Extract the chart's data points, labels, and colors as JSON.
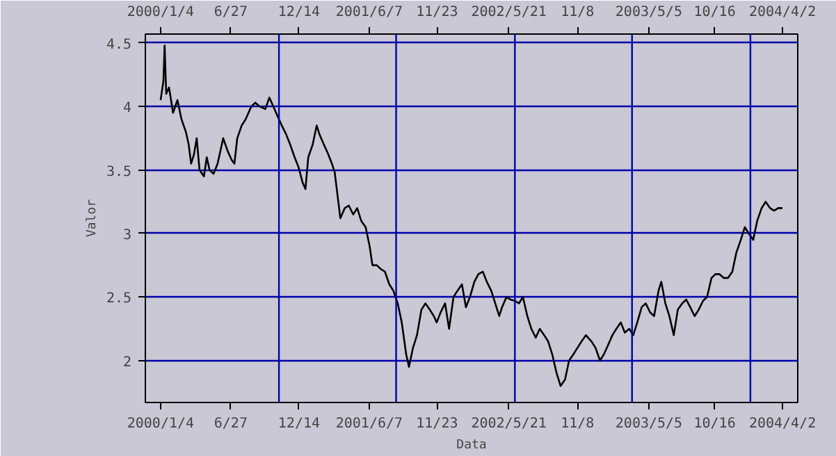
{
  "chart_data": {
    "type": "line",
    "xlabel": "Data",
    "ylabel": "Valor",
    "x": [
      "2000-01-04",
      "2000-01-11",
      "2000-01-14",
      "2000-01-18",
      "2000-01-25",
      "2000-02-04",
      "2000-02-15",
      "2000-02-25",
      "2000-03-07",
      "2000-03-14",
      "2000-03-20",
      "2000-03-27",
      "2000-04-03",
      "2000-04-10",
      "2000-04-21",
      "2000-04-28",
      "2000-05-05",
      "2000-05-15",
      "2000-05-25",
      "2000-06-08",
      "2000-06-19",
      "2000-06-29",
      "2000-07-06",
      "2000-07-13",
      "2000-07-24",
      "2000-08-03",
      "2000-08-17",
      "2000-08-27",
      "2000-09-07",
      "2000-09-21",
      "2000-10-01",
      "2000-10-11",
      "2000-10-22",
      "2000-11-01",
      "2000-11-12",
      "2000-11-22",
      "2000-12-03",
      "2000-12-13",
      "2000-12-23",
      "2000-12-30",
      "2001-01-06",
      "2001-01-17",
      "2001-01-27",
      "2001-02-03",
      "2001-02-14",
      "2001-02-24",
      "2001-03-06",
      "2001-03-13",
      "2001-03-20",
      "2001-03-27",
      "2001-04-07",
      "2001-04-17",
      "2001-04-28",
      "2001-05-08",
      "2001-05-18",
      "2001-05-29",
      "2001-06-08",
      "2001-06-15",
      "2001-06-26",
      "2001-07-06",
      "2001-07-16",
      "2001-07-27",
      "2001-08-06",
      "2001-08-17",
      "2001-08-27",
      "2001-09-07",
      "2001-09-14",
      "2001-09-24",
      "2001-10-04",
      "2001-10-15",
      "2001-10-25",
      "2001-11-05",
      "2001-11-15",
      "2001-11-22",
      "2001-12-02",
      "2001-12-13",
      "2001-12-23",
      "2002-01-03",
      "2002-01-13",
      "2002-01-24",
      "2002-02-03",
      "2002-02-13",
      "2002-02-24",
      "2002-03-06",
      "2002-03-17",
      "2002-03-27",
      "2002-04-07",
      "2002-04-17",
      "2002-04-27",
      "2002-05-04",
      "2002-05-15",
      "2002-05-25",
      "2002-06-05",
      "2002-06-15",
      "2002-06-25",
      "2002-07-06",
      "2002-07-16",
      "2002-07-27",
      "2002-08-06",
      "2002-08-17",
      "2002-08-27",
      "2002-09-06",
      "2002-09-17",
      "2002-09-27",
      "2002-10-08",
      "2002-10-18",
      "2002-10-29",
      "2002-11-08",
      "2002-11-18",
      "2002-11-29",
      "2002-12-13",
      "2002-12-23",
      "2003-01-03",
      "2003-01-13",
      "2003-01-23",
      "2003-02-03",
      "2003-02-13",
      "2003-02-24",
      "2003-03-06",
      "2003-03-17",
      "2003-03-27",
      "2003-04-06",
      "2003-04-17",
      "2003-04-27",
      "2003-05-08",
      "2003-05-18",
      "2003-05-29",
      "2003-06-05",
      "2003-06-15",
      "2003-06-25",
      "2003-07-06",
      "2003-07-16",
      "2003-07-27",
      "2003-08-06",
      "2003-08-16",
      "2003-08-27",
      "2003-09-06",
      "2003-09-17",
      "2003-09-27",
      "2003-10-08",
      "2003-10-18",
      "2003-10-28",
      "2003-11-08",
      "2003-11-18",
      "2003-11-29",
      "2003-12-09",
      "2003-12-20",
      "2003-12-30",
      "2004-01-09",
      "2004-01-20",
      "2004-01-30",
      "2004-02-10",
      "2004-02-20",
      "2004-03-02",
      "2004-03-12",
      "2004-03-22",
      "2004-04-02"
    ],
    "series": [
      {
        "color": "#000000",
        "values": [
          4.05,
          4.2,
          4.48,
          4.1,
          4.15,
          3.95,
          4.05,
          3.9,
          3.8,
          3.7,
          3.55,
          3.62,
          3.75,
          3.5,
          3.45,
          3.6,
          3.5,
          3.47,
          3.55,
          3.75,
          3.65,
          3.58,
          3.55,
          3.75,
          3.85,
          3.9,
          4.0,
          4.03,
          4.0,
          3.98,
          4.07,
          4.0,
          3.92,
          3.85,
          3.78,
          3.7,
          3.6,
          3.52,
          3.4,
          3.35,
          3.6,
          3.7,
          3.85,
          3.78,
          3.7,
          3.63,
          3.55,
          3.48,
          3.3,
          3.12,
          3.2,
          3.22,
          3.15,
          3.2,
          3.1,
          3.05,
          2.9,
          2.75,
          2.75,
          2.72,
          2.7,
          2.6,
          2.55,
          2.45,
          2.3,
          2.05,
          1.95,
          2.1,
          2.2,
          2.4,
          2.45,
          2.4,
          2.35,
          2.3,
          2.38,
          2.45,
          2.25,
          2.5,
          2.55,
          2.6,
          2.42,
          2.5,
          2.62,
          2.68,
          2.7,
          2.62,
          2.55,
          2.45,
          2.35,
          2.42,
          2.5,
          2.48,
          2.47,
          2.45,
          2.5,
          2.35,
          2.25,
          2.18,
          2.25,
          2.2,
          2.15,
          2.05,
          1.9,
          1.8,
          1.85,
          2.0,
          2.05,
          2.1,
          2.15,
          2.2,
          2.15,
          2.1,
          2.0,
          2.05,
          2.12,
          2.2,
          2.25,
          2.3,
          2.22,
          2.25,
          2.2,
          2.3,
          2.42,
          2.45,
          2.38,
          2.35,
          2.55,
          2.62,
          2.45,
          2.35,
          2.2,
          2.4,
          2.45,
          2.48,
          2.42,
          2.35,
          2.4,
          2.47,
          2.5,
          2.65,
          2.68,
          2.68,
          2.65,
          2.65,
          2.7,
          2.85,
          2.95,
          3.05,
          3.0,
          2.95,
          3.1,
          3.2,
          3.25,
          3.2,
          3.18,
          3.2,
          3.2
        ]
      }
    ],
    "xlim": [
      "1999-11-27",
      "2004-05-10"
    ],
    "xticks": [
      {
        "value": "2000-01-04",
        "label": "2000/1/4"
      },
      {
        "value": "2000-06-27",
        "label": "6/27"
      },
      {
        "value": "2000-12-14",
        "label": "12/14"
      },
      {
        "value": "2001-06-07",
        "label": "2001/6/7"
      },
      {
        "value": "2001-11-23",
        "label": "11/23"
      },
      {
        "value": "2002-05-21",
        "label": "2002/5/21"
      },
      {
        "value": "2002-11-08",
        "label": "11/8"
      },
      {
        "value": "2003-05-05",
        "label": "2003/5/5"
      },
      {
        "value": "2003-10-16",
        "label": "10/16"
      },
      {
        "value": "2004-04-02",
        "label": "2004/4/2"
      }
    ],
    "x2lim": [
      "1999-11-27",
      "2004-05-10"
    ],
    "x2ticks": [
      {
        "value": "2000-01-04",
        "label": "2000/1/4"
      },
      {
        "value": "2000-06-27",
        "label": "6/27"
      },
      {
        "value": "2000-12-14",
        "label": "12/14"
      },
      {
        "value": "2001-06-07",
        "label": "2001/6/7"
      },
      {
        "value": "2001-11-23",
        "label": "11/23"
      },
      {
        "value": "2002-05-21",
        "label": "2002/5/21"
      },
      {
        "value": "2002-11-08",
        "label": "11/8"
      },
      {
        "value": "2003-05-05",
        "label": "2003/5/5"
      },
      {
        "value": "2003-10-16",
        "label": "10/16"
      },
      {
        "value": "2004-04-02",
        "label": "2004/4/2"
      }
    ],
    "ylim": [
      1.67,
      4.57
    ],
    "yticks": [
      2,
      2.5,
      3,
      3.5,
      4,
      4.5
    ],
    "grid": "y",
    "marker": "none",
    "line_style": "solid",
    "ref_lines": [
      {
        "axis": "x",
        "value": "2000-10-25",
        "color": "#0000aa"
      },
      {
        "axis": "x",
        "value": "2001-08-13",
        "color": "#0000aa"
      },
      {
        "axis": "x",
        "value": "2002-06-05",
        "color": "#0000aa"
      },
      {
        "axis": "x",
        "value": "2003-03-24",
        "color": "#0000aa"
      },
      {
        "axis": "x",
        "value": "2004-01-13",
        "color": "#0000aa"
      }
    ]
  }
}
